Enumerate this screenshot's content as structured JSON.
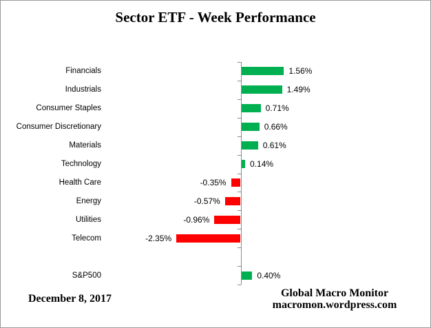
{
  "title": "Sector ETF - Week Performance",
  "footer": {
    "date": "December 8, 2017",
    "source_line1": "Global Macro Monitor",
    "source_line2": "macromon.wordpress.com"
  },
  "colors": {
    "positive": "#00B050",
    "negative": "#FF0000",
    "axis": "#898989",
    "frame_border": "#999999",
    "text": "#000000"
  },
  "chart_data": {
    "type": "bar",
    "orientation": "horizontal",
    "title": "Sector ETF - Week Performance",
    "xlabel": "",
    "ylabel": "",
    "grid": false,
    "legend": false,
    "axis": {
      "zero_line": true,
      "tick_marks": true,
      "tick_labels": false
    },
    "value_suffix": "%",
    "categories": [
      "Financials",
      "Industrials",
      "Consumer Staples",
      "Consumer Discretionary",
      "Materials",
      "Technology",
      "Health Care",
      "Energy",
      "Utilities",
      "Telecom",
      "",
      "S&P500"
    ],
    "values": [
      1.56,
      1.49,
      0.71,
      0.66,
      0.61,
      0.14,
      -0.35,
      -0.57,
      -0.96,
      -2.35,
      null,
      0.4
    ],
    "value_labels": [
      "1.56%",
      "1.49%",
      "0.71%",
      "0.66%",
      "0.61%",
      "0.14%",
      "-0.35%",
      "-0.57%",
      "-0.96%",
      "-2.35%",
      "",
      "0.40%"
    ]
  }
}
